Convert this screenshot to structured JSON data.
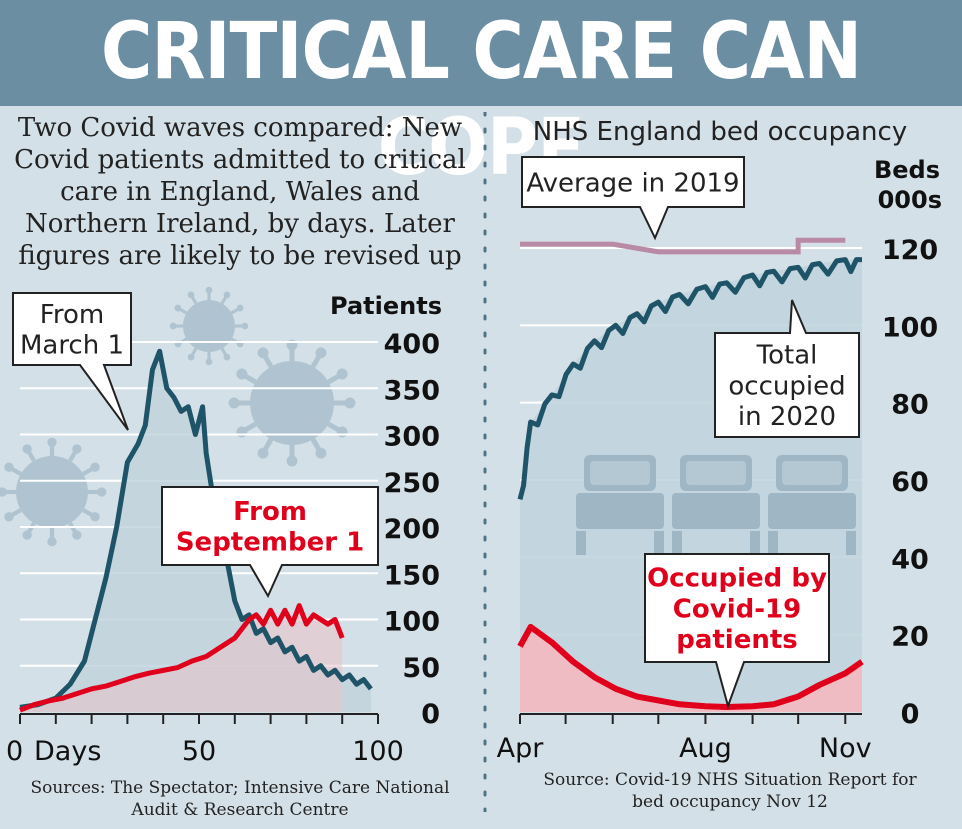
{
  "header": {
    "title": "CRITICAL CARE CAN COPE"
  },
  "left": {
    "description": "Two Covid waves compared: New Covid patients admitted to critical care in England, Wales and Northern Ireland, by days. Later figures are likely to be revised up",
    "source": "Sources: The Spectator; Intensive Care National Audit & Research Centre",
    "callout_march": "From March 1",
    "callout_september": "From September 1"
  },
  "right": {
    "title": "NHS England bed occupancy",
    "source": "Source: Covid-19 NHS Situation Report for bed occupancy Nov 12",
    "callout_average": "Average in 2019",
    "callout_total": "Total occupied in 2020",
    "callout_covid": "Occupied by Covid-19 patients"
  },
  "colors": {
    "teal": "#1f5468",
    "red": "#e0001b",
    "pink": "#b98aa6",
    "header": "#6b8ea2",
    "background": "#d4e0e7"
  },
  "chart_data": [
    {
      "type": "line",
      "ylabel": "Patients",
      "xlabel": "Days",
      "ylim": [
        0,
        400
      ],
      "xlim": [
        0,
        100
      ],
      "yticks": [
        0,
        50,
        100,
        150,
        200,
        250,
        300,
        350,
        400
      ],
      "xticks": [
        "0",
        "50",
        "100"
      ],
      "x_unit_label": "Days",
      "grid": true,
      "series": [
        {
          "name": "From March 1",
          "color": "#1f5468",
          "points": [
            [
              0,
              5
            ],
            [
              5,
              8
            ],
            [
              10,
              15
            ],
            [
              14,
              30
            ],
            [
              18,
              55
            ],
            [
              21,
              100
            ],
            [
              24,
              145
            ],
            [
              27,
              200
            ],
            [
              30,
              270
            ],
            [
              33,
              290
            ],
            [
              35,
              310
            ],
            [
              37,
              370
            ],
            [
              39,
              390
            ],
            [
              41,
              350
            ],
            [
              43,
              340
            ],
            [
              45,
              325
            ],
            [
              47,
              330
            ],
            [
              49,
              300
            ],
            [
              51,
              330
            ],
            [
              52,
              280
            ],
            [
              54,
              230
            ],
            [
              56,
              190
            ],
            [
              58,
              160
            ],
            [
              60,
              120
            ],
            [
              62,
              100
            ],
            [
              64,
              105
            ],
            [
              66,
              85
            ],
            [
              68,
              90
            ],
            [
              70,
              75
            ],
            [
              72,
              80
            ],
            [
              74,
              65
            ],
            [
              76,
              70
            ],
            [
              78,
              55
            ],
            [
              80,
              60
            ],
            [
              82,
              45
            ],
            [
              84,
              50
            ],
            [
              86,
              40
            ],
            [
              88,
              45
            ],
            [
              90,
              35
            ],
            [
              92,
              40
            ],
            [
              94,
              30
            ],
            [
              96,
              35
            ],
            [
              98,
              25
            ]
          ]
        },
        {
          "name": "From September 1",
          "color": "#e0001b",
          "points": [
            [
              0,
              2
            ],
            [
              4,
              8
            ],
            [
              8,
              12
            ],
            [
              12,
              15
            ],
            [
              16,
              20
            ],
            [
              20,
              25
            ],
            [
              24,
              28
            ],
            [
              28,
              33
            ],
            [
              32,
              38
            ],
            [
              36,
              42
            ],
            [
              40,
              45
            ],
            [
              44,
              48
            ],
            [
              48,
              55
            ],
            [
              52,
              60
            ],
            [
              56,
              70
            ],
            [
              60,
              80
            ],
            [
              64,
              100
            ],
            [
              66,
              105
            ],
            [
              68,
              95
            ],
            [
              70,
              110
            ],
            [
              72,
              95
            ],
            [
              74,
              110
            ],
            [
              76,
              95
            ],
            [
              78,
              115
            ],
            [
              80,
              95
            ],
            [
              82,
              105
            ],
            [
              84,
              100
            ],
            [
              86,
              95
            ],
            [
              88,
              100
            ],
            [
              90,
              80
            ]
          ]
        }
      ]
    },
    {
      "type": "line",
      "ylabel": "Beds 000s",
      "ylim": [
        0,
        120
      ],
      "yticks": [
        0,
        20,
        40,
        60,
        80,
        100,
        120
      ],
      "xticks": [
        "Apr",
        "Aug",
        "Nov"
      ],
      "grid": true,
      "series": [
        {
          "name": "Average in 2019",
          "color": "#b98aa6",
          "points": [
            [
              "Apr",
              121
            ],
            [
              "Jun",
              121
            ],
            [
              "Jul",
              119
            ],
            [
              "Oct",
              119
            ],
            [
              "Oct",
              122
            ],
            [
              "Nov",
              122
            ]
          ]
        },
        {
          "name": "Total occupied in 2020",
          "color": "#1f5468",
          "points": [
            [
              "Apr 1",
              55
            ],
            [
              "Apr 8",
              75
            ],
            [
              "Apr 22",
              82
            ],
            [
              "May 6",
              90
            ],
            [
              "May 20",
              96
            ],
            [
              "Jun 3",
              100
            ],
            [
              "Jun 17",
              103
            ],
            [
              "Jul 1",
              106
            ],
            [
              "Jul 15",
              108
            ],
            [
              "Aug 1",
              110
            ],
            [
              "Aug 15",
              111
            ],
            [
              "Sep 1",
              113
            ],
            [
              "Sep 15",
              114
            ],
            [
              "Oct 1",
              115
            ],
            [
              "Oct 15",
              116
            ],
            [
              "Nov 1",
              117
            ],
            [
              "Nov 12",
              117
            ]
          ]
        },
        {
          "name": "Occupied by Covid-19 patients",
          "color": "#e0001b",
          "points": [
            [
              "Apr 1",
              17
            ],
            [
              "Apr 8",
              22
            ],
            [
              "Apr 22",
              18
            ],
            [
              "May 6",
              13
            ],
            [
              "May 20",
              9
            ],
            [
              "Jun 3",
              6
            ],
            [
              "Jun 17",
              4
            ],
            [
              "Jul 1",
              3
            ],
            [
              "Jul 15",
              2
            ],
            [
              "Aug 1",
              1.5
            ],
            [
              "Aug 15",
              1.3
            ],
            [
              "Sep 1",
              1.5
            ],
            [
              "Sep 15",
              2
            ],
            [
              "Oct 1",
              4
            ],
            [
              "Oct 15",
              7
            ],
            [
              "Nov 1",
              10
            ],
            [
              "Nov 12",
              13
            ]
          ]
        }
      ]
    }
  ]
}
